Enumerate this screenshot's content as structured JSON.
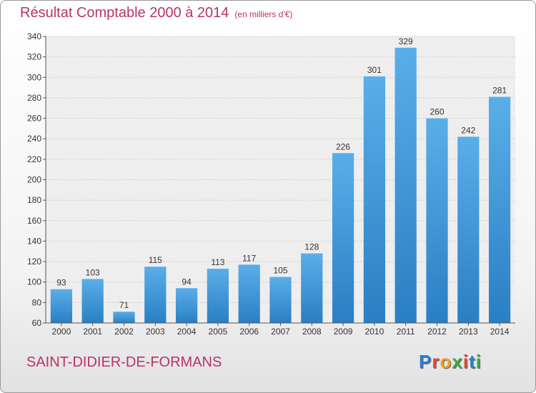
{
  "header": {
    "title": "Résultat Comptable 2000 à 2014",
    "subtitle": "(en milliers d'€)"
  },
  "footer": {
    "commune": "SAINT-DIDIER-DE-FORMANS",
    "logo_letters": [
      "P",
      "r",
      "o",
      "x",
      "i",
      "t",
      "i"
    ],
    "logo_colors": [
      "#2e7dd1",
      "#e8452c",
      "#f0a020",
      "#3aa84a",
      "#e8452c",
      "#2e7dd1",
      "#3aa84a"
    ]
  },
  "chart_data": {
    "type": "bar",
    "title": "Résultat Comptable 2000 à 2014",
    "subtitle": "(en milliers d'€)",
    "categories": [
      "2000",
      "2001",
      "2002",
      "2003",
      "2004",
      "2005",
      "2006",
      "2007",
      "2008",
      "2009",
      "2010",
      "2011",
      "2012",
      "2013",
      "2014"
    ],
    "values": [
      93,
      103,
      71,
      115,
      94,
      113,
      117,
      105,
      128,
      226,
      301,
      329,
      260,
      242,
      281
    ],
    "ylim": [
      60,
      340
    ],
    "yticks": [
      60,
      80,
      100,
      120,
      140,
      160,
      180,
      200,
      220,
      240,
      260,
      280,
      300,
      320,
      340
    ],
    "grid": true,
    "bar_color": "#4a9fe0"
  }
}
